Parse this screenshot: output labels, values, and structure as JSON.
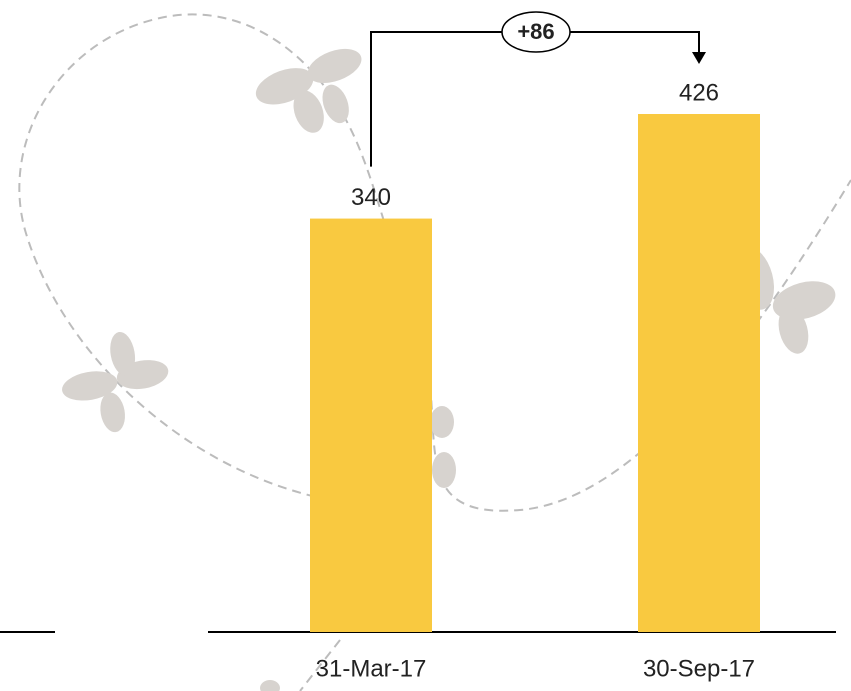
{
  "chart_data": {
    "type": "bar",
    "categories": [
      "31-Mar-17",
      "30-Sep-17"
    ],
    "values": [
      340,
      426
    ],
    "color": "#f9c940",
    "annotation": "+86"
  }
}
